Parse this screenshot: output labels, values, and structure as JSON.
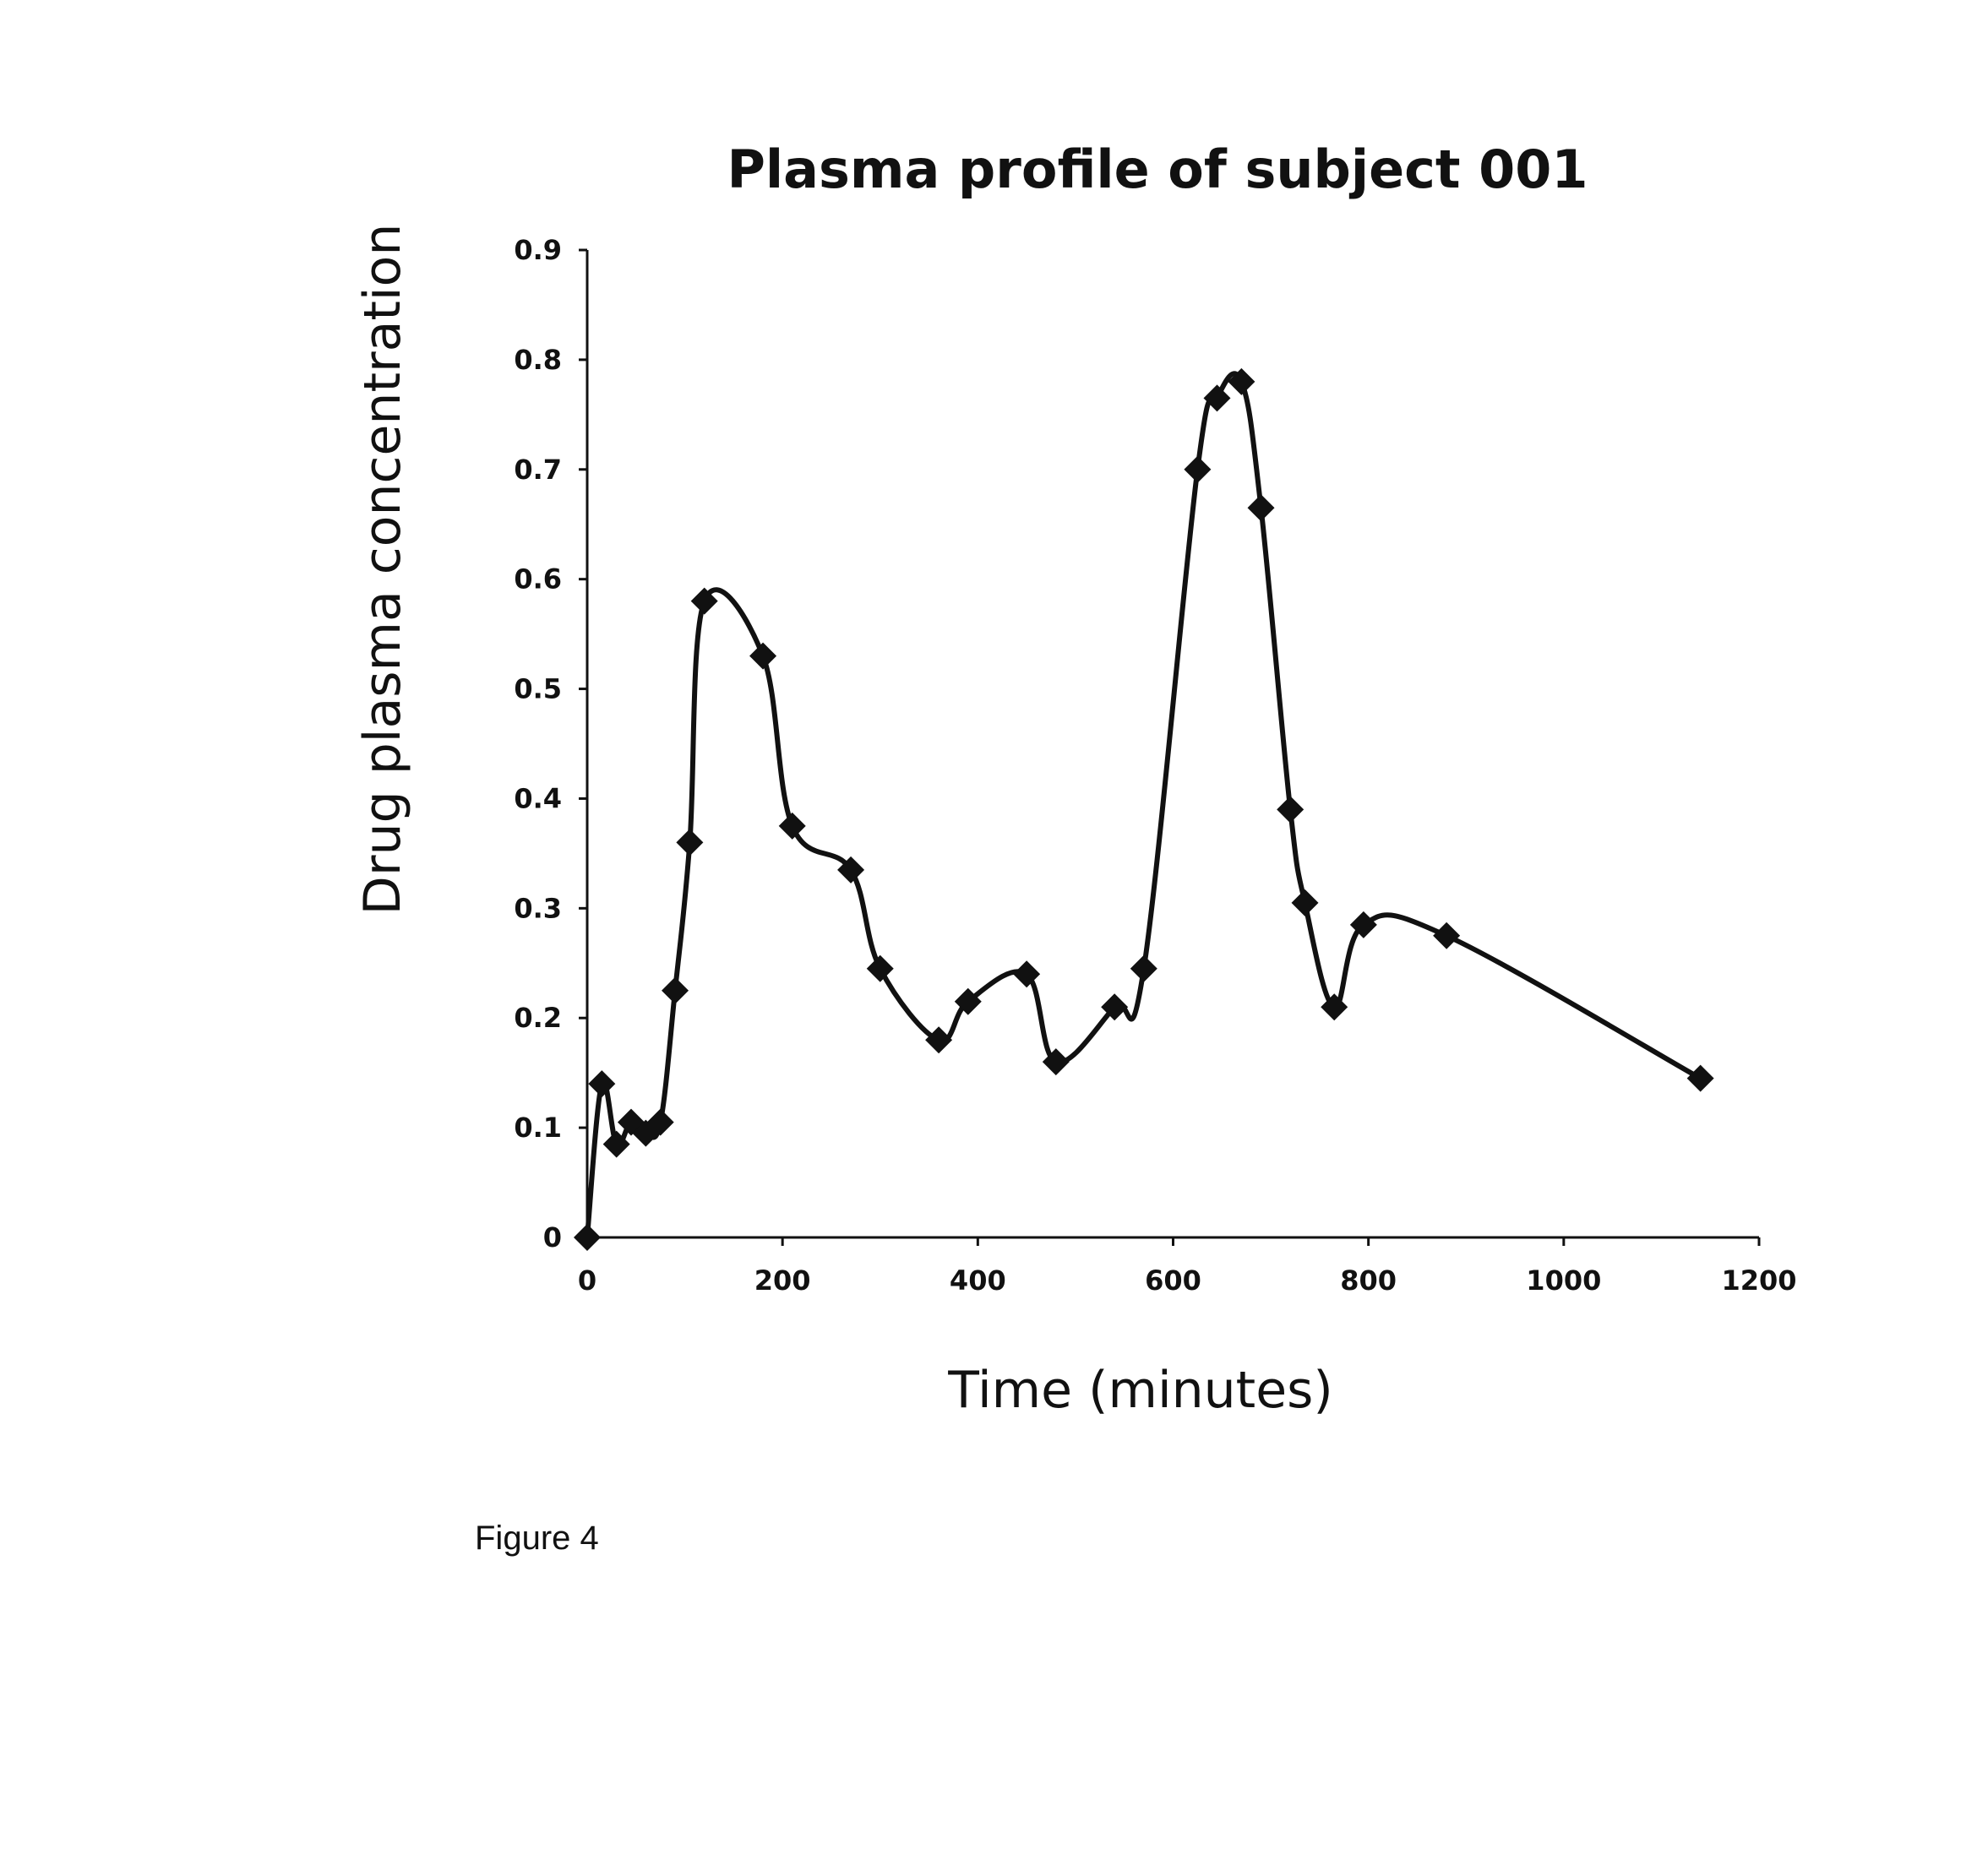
{
  "chart_data": {
    "type": "line",
    "title": "Plasma profile of subject 001",
    "xlabel": "Time (minutes)",
    "ylabel": "Drug plasma concentration",
    "xlim": [
      0,
      1200
    ],
    "ylim": [
      0,
      0.9
    ],
    "x_ticks": [
      "0",
      "200",
      "400",
      "600",
      "800",
      "1000",
      "1200"
    ],
    "y_ticks": [
      "0",
      "0.1",
      "0.2",
      "0.3",
      "0.4",
      "0.5",
      "0.6",
      "0.7",
      "0.8",
      "0.9"
    ],
    "grid": false,
    "legend": "none",
    "marker": "diamond",
    "smooth": true,
    "line_color": "#111111",
    "series": [
      {
        "x": [
          0,
          15,
          30,
          45,
          60,
          75,
          90,
          105,
          120,
          180,
          210,
          270,
          300,
          360,
          390,
          450,
          480,
          540,
          570,
          625,
          645,
          670,
          690,
          720,
          735,
          765,
          795,
          880,
          1140
        ],
        "y": [
          0.0,
          0.14,
          0.085,
          0.105,
          0.095,
          0.105,
          0.225,
          0.36,
          0.58,
          0.53,
          0.375,
          0.335,
          0.245,
          0.18,
          0.215,
          0.24,
          0.16,
          0.21,
          0.245,
          0.7,
          0.765,
          0.78,
          0.665,
          0.39,
          0.305,
          0.21,
          0.285,
          0.275,
          0.145
        ]
      }
    ]
  },
  "caption": "Figure 4"
}
